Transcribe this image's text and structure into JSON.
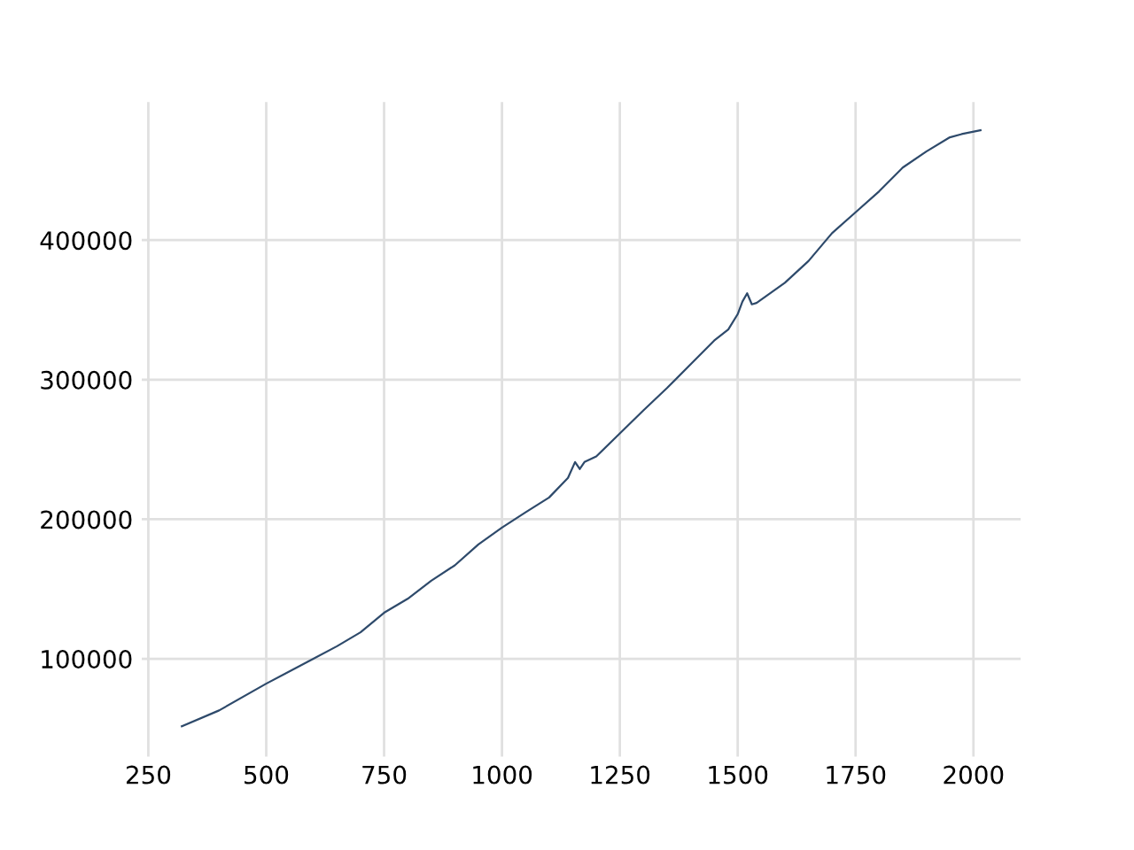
{
  "chart_data": {
    "type": "line",
    "x": [
      321,
      400,
      500,
      600,
      650,
      700,
      750,
      800,
      850,
      900,
      950,
      1000,
      1050,
      1100,
      1140,
      1155,
      1165,
      1175,
      1200,
      1250,
      1300,
      1350,
      1400,
      1450,
      1480,
      1500,
      1510,
      1520,
      1530,
      1540,
      1600,
      1650,
      1700,
      1750,
      1800,
      1850,
      1900,
      1950,
      1975,
      2015
    ],
    "series": [
      {
        "color": "#2e4a6b",
        "values": [
          51700,
          63000,
          82200,
          100000,
          109000,
          119000,
          133000,
          143000,
          156000,
          167000,
          182000,
          194000,
          205000,
          215600,
          229600,
          241000,
          236000,
          241000,
          245000,
          261500,
          278000,
          294000,
          311000,
          328000,
          336000,
          347000,
          356000,
          361900,
          354000,
          355000,
          369500,
          385000,
          405000,
          420000,
          435000,
          452000,
          463500,
          473700,
          476000,
          478800
        ]
      }
    ],
    "xlim": [
      236,
      2100
    ],
    "ylim": [
      30000,
      499000
    ],
    "xticks": [
      250,
      500,
      750,
      1000,
      1250,
      1500,
      1750,
      2000
    ],
    "yticks": [
      100000,
      200000,
      300000,
      400000
    ],
    "grid": true,
    "line_style": "solid",
    "marker": "none",
    "legend": false
  }
}
